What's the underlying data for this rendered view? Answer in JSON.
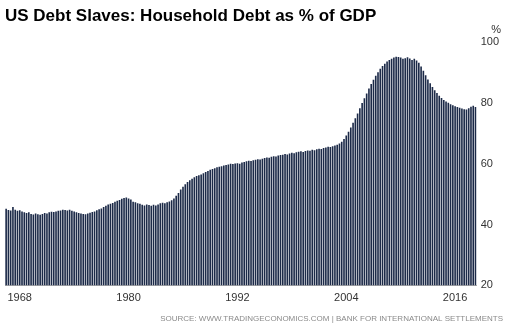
{
  "chart_data": {
    "type": "bar",
    "title": "US Debt Slaves: Household Debt as % of GDP",
    "ylabel": "%",
    "source": "SOURCE: WWW.TRADINGECONOMICS.COM | BANK FOR INTERNATIONAL SETTLEMENTS",
    "color": "#1c2a48",
    "grid": false,
    "ylim": [
      20,
      100
    ],
    "yticks": [
      20,
      40,
      60,
      80,
      100
    ],
    "categories": [
      null,
      null,
      null,
      null,
      null,
      null,
      "1968",
      null,
      null,
      null,
      null,
      null,
      null,
      null,
      null,
      null,
      null,
      null,
      null,
      null,
      null,
      null,
      null,
      null,
      null,
      null,
      null,
      null,
      null,
      null,
      null,
      null,
      null,
      null,
      null,
      null,
      null,
      null,
      null,
      null,
      null,
      null,
      null,
      null,
      null,
      null,
      null,
      null,
      null,
      null,
      null,
      null,
      null,
      null,
      "1980",
      null,
      null,
      null,
      null,
      null,
      null,
      null,
      null,
      null,
      null,
      null,
      null,
      null,
      null,
      null,
      null,
      null,
      null,
      null,
      null,
      null,
      null,
      null,
      null,
      null,
      null,
      null,
      null,
      null,
      null,
      null,
      null,
      null,
      null,
      null,
      null,
      null,
      null,
      null,
      null,
      null,
      null,
      null,
      null,
      null,
      null,
      null,
      "1992",
      null,
      null,
      null,
      null,
      null,
      null,
      null,
      null,
      null,
      null,
      null,
      null,
      null,
      null,
      null,
      null,
      null,
      null,
      null,
      null,
      null,
      null,
      null,
      null,
      null,
      null,
      null,
      null,
      null,
      null,
      null,
      null,
      null,
      null,
      null,
      null,
      null,
      null,
      null,
      null,
      null,
      null,
      null,
      null,
      null,
      null,
      null,
      "2004",
      null,
      null,
      null,
      null,
      null,
      null,
      null,
      null,
      null,
      null,
      null,
      null,
      null,
      null,
      null,
      null,
      null,
      null,
      null,
      null,
      null,
      null,
      null,
      null,
      null,
      null,
      null,
      null,
      null,
      null,
      null,
      null,
      null,
      null,
      null,
      null,
      null,
      null,
      null,
      null,
      null,
      null,
      null,
      null,
      null,
      null,
      null,
      "2016",
      null,
      null,
      null,
      null,
      null,
      null,
      null,
      null,
      null
    ],
    "values": [
      45.2,
      44.8,
      44.6,
      45.8,
      44.9,
      44.5,
      44.7,
      44.3,
      44.0,
      43.8,
      44.0,
      43.5,
      43.3,
      43.6,
      43.4,
      43.2,
      43.5,
      43.8,
      43.6,
      44.0,
      44.2,
      44.1,
      44.3,
      44.5,
      44.6,
      44.9,
      44.8,
      44.6,
      44.9,
      44.5,
      44.3,
      44.0,
      43.8,
      43.6,
      43.5,
      43.4,
      43.6,
      43.9,
      44.1,
      44.3,
      44.7,
      45.0,
      45.3,
      45.8,
      46.2,
      46.6,
      46.8,
      47.1,
      47.5,
      47.8,
      48.1,
      48.5,
      48.7,
      48.9,
      48.6,
      48.2,
      47.5,
      47.3,
      47.0,
      46.8,
      46.5,
      46.3,
      46.6,
      46.4,
      46.2,
      46.5,
      46.3,
      46.6,
      47.0,
      47.2,
      47.0,
      47.3,
      47.6,
      48.0,
      48.6,
      49.5,
      50.4,
      51.5,
      52.4,
      53.3,
      54.0,
      54.6,
      55.1,
      55.6,
      56.0,
      56.2,
      56.5,
      56.9,
      57.3,
      57.6,
      58.0,
      58.3,
      58.5,
      58.9,
      59.0,
      59.2,
      59.4,
      59.6,
      59.8,
      60.0,
      59.9,
      60.1,
      60.2,
      60.0,
      60.4,
      60.6,
      60.8,
      61.0,
      60.9,
      61.2,
      61.3,
      61.5,
      61.4,
      61.7,
      61.9,
      62.1,
      62.0,
      62.3,
      62.5,
      62.4,
      62.7,
      62.9,
      63.0,
      63.2,
      63.1,
      63.4,
      63.6,
      63.5,
      63.8,
      64.0,
      64.1,
      63.9,
      64.2,
      64.4,
      64.3,
      64.6,
      64.5,
      64.8,
      65.0,
      64.9,
      65.2,
      65.4,
      65.6,
      65.5,
      65.8,
      66.0,
      66.3,
      66.7,
      67.3,
      68.2,
      69.3,
      70.6,
      72.0,
      73.5,
      75.0,
      76.6,
      78.3,
      80.0,
      81.6,
      83.2,
      84.8,
      86.3,
      87.7,
      89.0,
      90.2,
      91.3,
      92.2,
      93.0,
      93.7,
      94.2,
      94.6,
      95.0,
      95.3,
      95.2,
      95.0,
      94.6,
      94.8,
      95.1,
      94.7,
      94.2,
      94.6,
      94.0,
      93.3,
      92.1,
      90.7,
      89.2,
      87.8,
      86.5,
      85.3,
      84.2,
      83.3,
      82.4,
      81.7,
      81.0,
      80.5,
      80.1,
      79.6,
      79.3,
      79.0,
      78.7,
      78.5,
      78.2,
      78.0,
      77.9,
      78.3,
      78.8,
      79.1,
      78.7
    ]
  }
}
